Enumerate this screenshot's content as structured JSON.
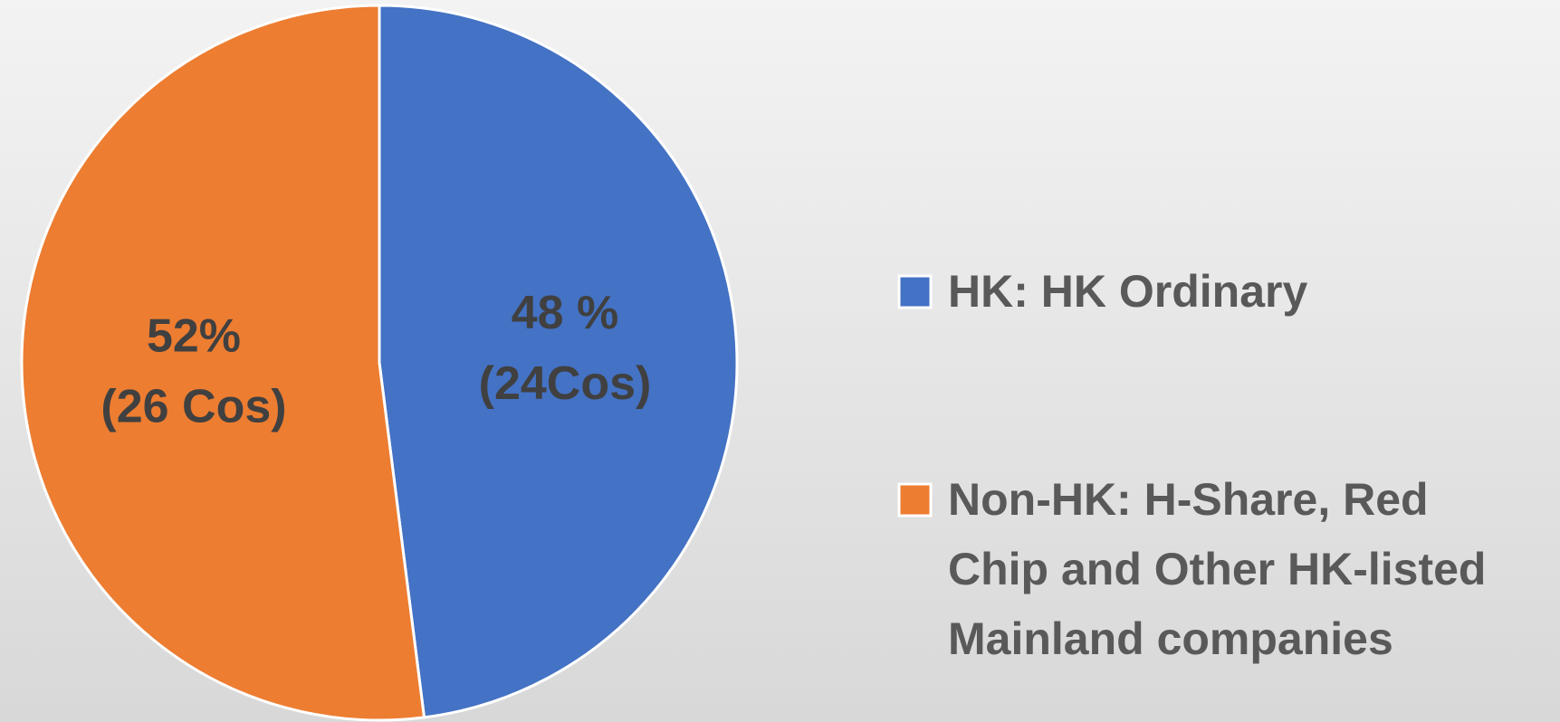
{
  "chart_data": {
    "type": "pie",
    "series": [
      {
        "name": "HK: HK Ordinary",
        "color": "#4472c4",
        "values": [
          48
        ]
      },
      {
        "name": "Non-HK: H-Share, Red Chip and Other HK-listed Mainland companies",
        "color": "#ed7d31",
        "values": [
          52
        ]
      }
    ],
    "value_labels": [
      [
        "48 %",
        "(24Cos)"
      ],
      [
        "52%",
        "(26 Cos)"
      ]
    ],
    "legend": "right"
  }
}
